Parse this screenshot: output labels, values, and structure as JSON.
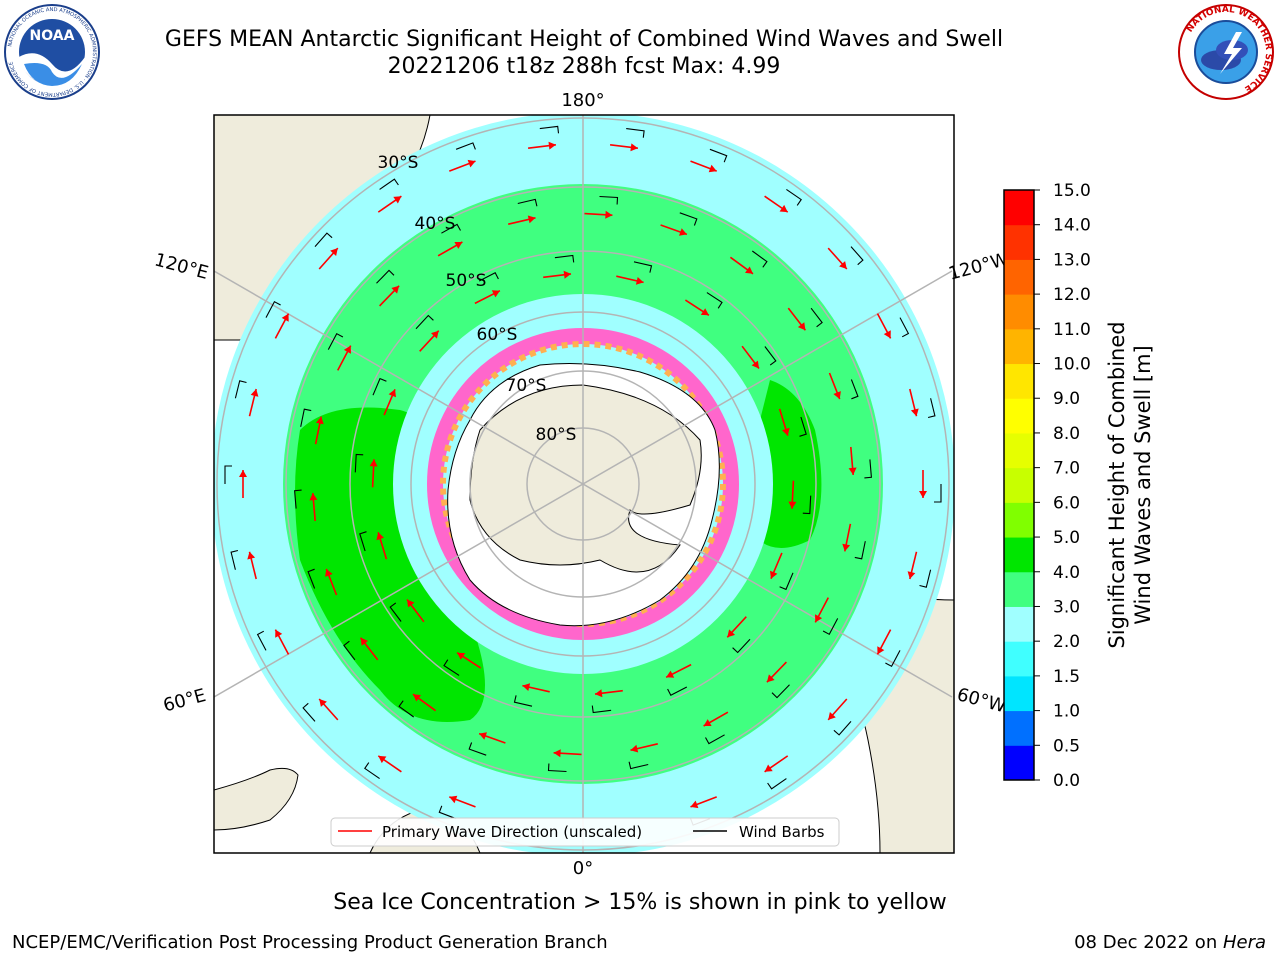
{
  "header": {
    "title_line1": "GEFS MEAN Antarctic Significant Height of Combined Wind Waves and Swell",
    "title_line2": "20221206 t18z 288h fcst   Max: 4.99"
  },
  "logos": {
    "left_text": "NOAA",
    "left_ring_text": "NATIONAL OCEANIC AND ATMOSPHERIC ADMINISTRATION · U.S. DEPARTMENT OF COMMERCE",
    "right_ring_text": "NATIONAL WEATHER SERVICE"
  },
  "map": {
    "lon_labels": {
      "top": "180°",
      "bottom": "0°",
      "upper_left": "120°E",
      "upper_right": "120°W",
      "lower_left": "60°E",
      "lower_right": "60°W"
    },
    "lat_labels": [
      "30°S",
      "40°S",
      "50°S",
      "60°S",
      "70°S",
      "80°S"
    ],
    "legend": {
      "wave": "Primary Wave Direction (unscaled)",
      "barbs": "Wind Barbs"
    },
    "colors": {
      "land": "#efecdc",
      "wave_arrow": "#ff0000",
      "barb": "#000000",
      "grid": "#b4b4b4"
    }
  },
  "colorbar": {
    "label_line1": "Significant Height of Combined",
    "label_line2": "Wind Waves and Swell [m]",
    "ticks": [
      "15.0",
      "14.0",
      "13.0",
      "12.0",
      "11.0",
      "10.0",
      "9.0",
      "8.0",
      "7.0",
      "6.0",
      "5.0",
      "4.0",
      "3.0",
      "2.0",
      "1.5",
      "1.0",
      "0.5",
      "0.0"
    ],
    "colors": [
      "#0000ff",
      "#0070ff",
      "#00e5ff",
      "#40ffff",
      "#a0ffff",
      "#40ff80",
      "#00e600",
      "#80ff00",
      "#c8ff00",
      "#e6ff00",
      "#ffff00",
      "#ffe600",
      "#ffb400",
      "#ff8c00",
      "#ff6400",
      "#ff3200",
      "#ff0000"
    ]
  },
  "caption": "Sea Ice Concentration > 15% is shown in pink to yellow",
  "footer": {
    "left": "NCEP/EMC/Verification Post Processing Product Generation Branch",
    "right_prefix": "08 Dec 2022 on ",
    "right_italic": "Hera"
  }
}
